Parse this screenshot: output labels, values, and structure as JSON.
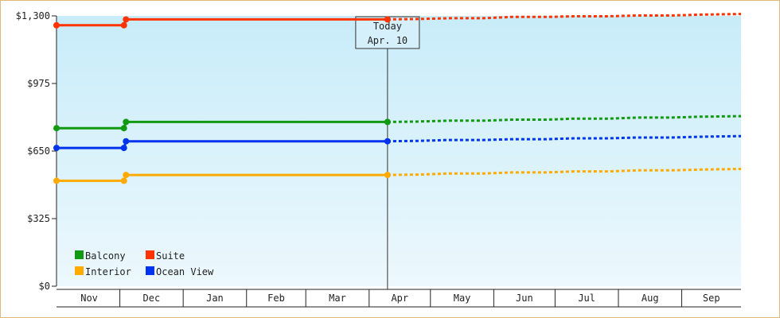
{
  "chart_data": {
    "type": "line",
    "title": "",
    "xlabel": "",
    "ylabel": "",
    "x_axis_months": [
      "Nov",
      "Dec",
      "Jan",
      "Feb",
      "Mar",
      "Apr",
      "May",
      "Jun",
      "Jul",
      "Aug",
      "Sep"
    ],
    "y_ticks": [
      "$0",
      "$325",
      "$650",
      "$975",
      "$1,300"
    ],
    "ylim": [
      0,
      1300
    ],
    "grid": false,
    "legend_position": "bottom-left",
    "today_marker": {
      "line1": "Today",
      "line2": "Apr. 10",
      "date": "2024-04-10"
    },
    "x_range": [
      "2023-10-31",
      "2024-09-30"
    ],
    "series": [
      {
        "name": "Suite",
        "color": "#ff3300",
        "points": [
          [
            "2023-10-31",
            1255
          ],
          [
            "2023-12-03",
            1255
          ],
          [
            "2023-12-04",
            1283
          ],
          [
            "2024-04-10",
            1283
          ]
        ],
        "forecast": [
          [
            "2024-04-10",
            1283
          ],
          [
            "2024-04-25",
            1285
          ],
          [
            "2024-05-10",
            1289
          ],
          [
            "2024-05-27",
            1289
          ],
          [
            "2024-06-10",
            1295
          ],
          [
            "2024-06-27",
            1295
          ],
          [
            "2024-07-10",
            1298
          ],
          [
            "2024-07-27",
            1298
          ],
          [
            "2024-08-10",
            1302
          ],
          [
            "2024-08-27",
            1302
          ],
          [
            "2024-09-10",
            1306
          ],
          [
            "2024-09-30",
            1309
          ]
        ]
      },
      {
        "name": "Balcony",
        "color": "#119911",
        "points": [
          [
            "2023-10-31",
            760
          ],
          [
            "2023-12-03",
            760
          ],
          [
            "2023-12-04",
            790
          ],
          [
            "2024-04-10",
            790
          ]
        ],
        "forecast": [
          [
            "2024-04-10",
            790
          ],
          [
            "2024-04-25",
            792
          ],
          [
            "2024-05-10",
            796
          ],
          [
            "2024-05-27",
            796
          ],
          [
            "2024-06-10",
            801
          ],
          [
            "2024-06-27",
            801
          ],
          [
            "2024-07-10",
            806
          ],
          [
            "2024-07-27",
            806
          ],
          [
            "2024-08-10",
            811
          ],
          [
            "2024-08-27",
            811
          ],
          [
            "2024-09-10",
            815
          ],
          [
            "2024-09-30",
            818
          ]
        ]
      },
      {
        "name": "Ocean View",
        "color": "#0033ee",
        "points": [
          [
            "2023-10-31",
            665
          ],
          [
            "2023-12-03",
            665
          ],
          [
            "2023-12-04",
            697
          ],
          [
            "2024-04-10",
            697
          ]
        ],
        "forecast": [
          [
            "2024-04-10",
            697
          ],
          [
            "2024-04-25",
            699
          ],
          [
            "2024-05-10",
            703
          ],
          [
            "2024-05-27",
            703
          ],
          [
            "2024-06-10",
            707
          ],
          [
            "2024-06-27",
            707
          ],
          [
            "2024-07-10",
            711
          ],
          [
            "2024-07-27",
            711
          ],
          [
            "2024-08-10",
            715
          ],
          [
            "2024-08-27",
            715
          ],
          [
            "2024-09-10",
            719
          ],
          [
            "2024-09-30",
            722
          ]
        ]
      },
      {
        "name": "Interior",
        "color": "#ffaa00",
        "points": [
          [
            "2023-10-31",
            507
          ],
          [
            "2023-12-03",
            507
          ],
          [
            "2023-12-04",
            535
          ],
          [
            "2024-04-10",
            535
          ]
        ],
        "forecast": [
          [
            "2024-04-10",
            535
          ],
          [
            "2024-04-25",
            537
          ],
          [
            "2024-05-10",
            542
          ],
          [
            "2024-05-27",
            542
          ],
          [
            "2024-06-10",
            547
          ],
          [
            "2024-06-27",
            547
          ],
          [
            "2024-07-10",
            552
          ],
          [
            "2024-07-27",
            552
          ],
          [
            "2024-08-10",
            557
          ],
          [
            "2024-08-27",
            557
          ],
          [
            "2024-09-10",
            561
          ],
          [
            "2024-09-30",
            564
          ]
        ]
      }
    ],
    "legend": [
      {
        "name": "Balcony",
        "color": "#119911"
      },
      {
        "name": "Suite",
        "color": "#ff3300"
      },
      {
        "name": "Interior",
        "color": "#ffaa00"
      },
      {
        "name": "Ocean View",
        "color": "#0033ee"
      }
    ]
  }
}
